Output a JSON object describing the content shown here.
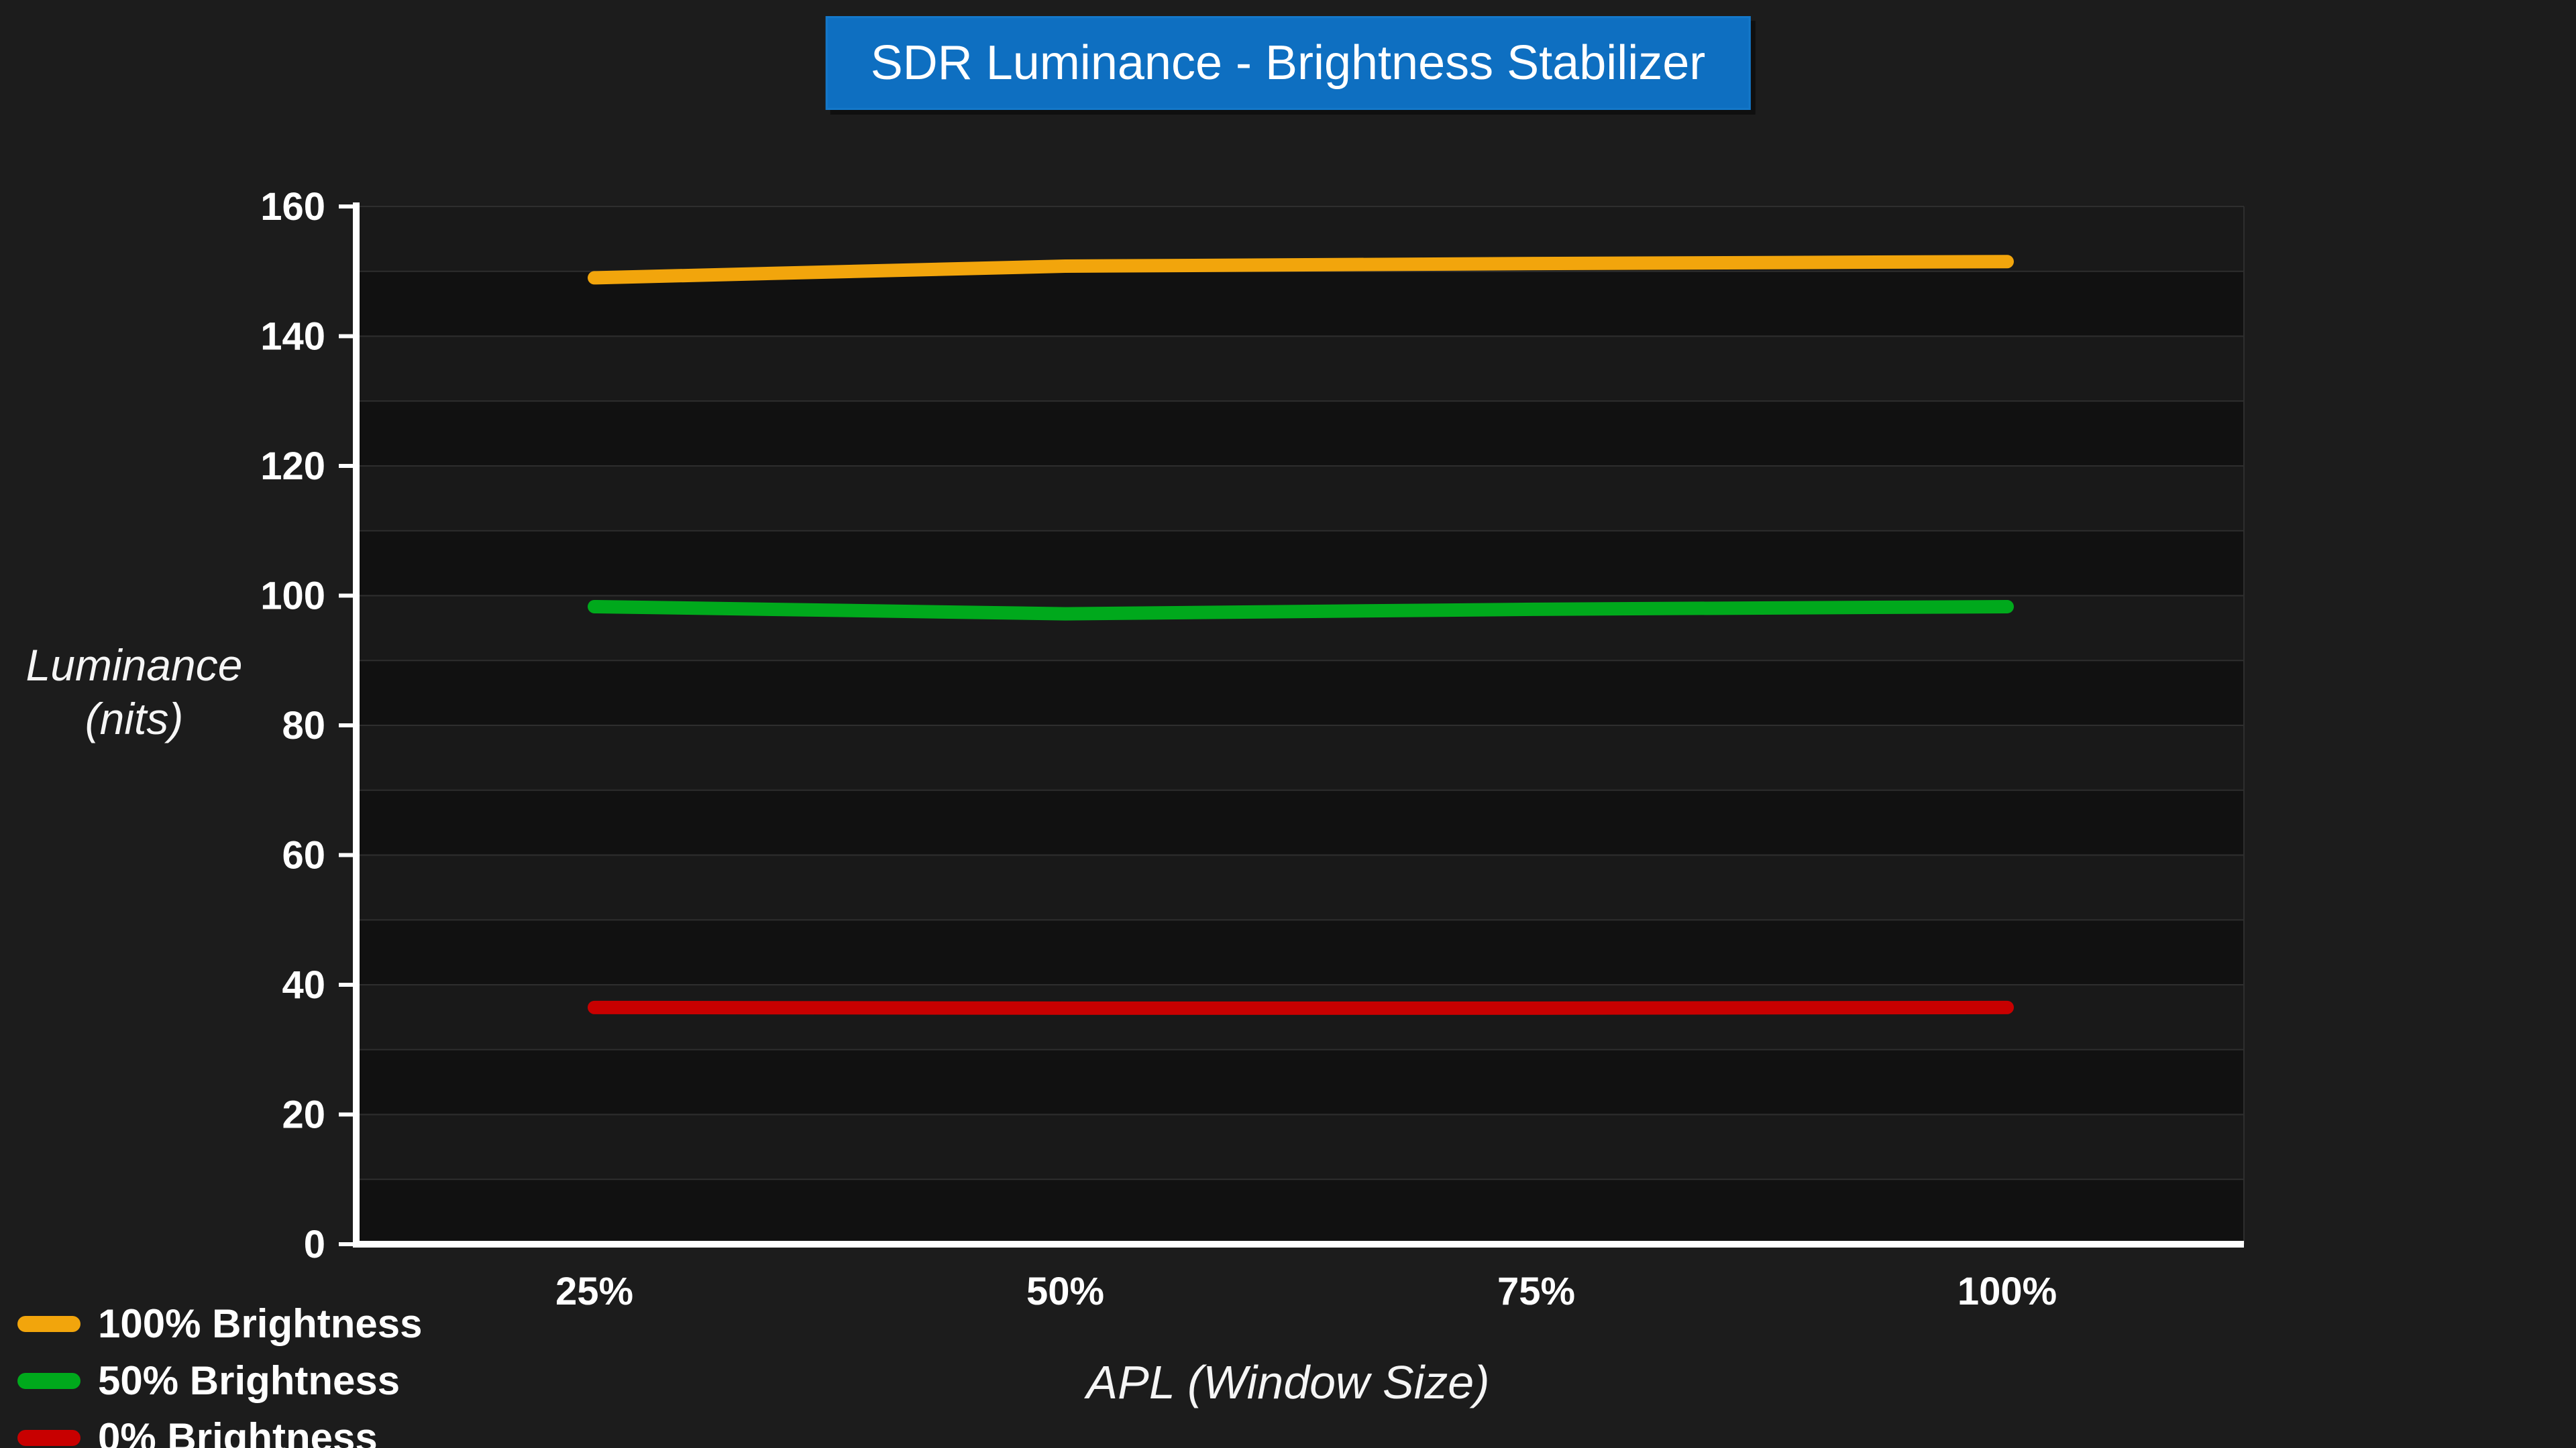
{
  "title": "SDR Luminance - Brightness Stabilizer",
  "colors": {
    "background": "#1c1c1c",
    "title_background": "#0e6fc1",
    "axis": "#ffffff",
    "gridline": "#2e2e2e",
    "text": "#ffffff"
  },
  "chart_data": {
    "type": "line",
    "title": "SDR Luminance - Brightness Stabilizer",
    "xlabel": "APL (Window Size)",
    "ylabel": "Luminance (nits)",
    "ylabel_lines": [
      "Luminance",
      "(nits)"
    ],
    "x_tick_labels": [
      "25%",
      "50%",
      "75%",
      "100%"
    ],
    "x": [
      25,
      50,
      75,
      100
    ],
    "y_ticks": [
      0,
      20,
      40,
      60,
      80,
      100,
      120,
      140,
      160
    ],
    "ylim": [
      0,
      160
    ],
    "grid": "horizontal gridlines every 10 nits, alternating shaded bands",
    "legend_position": "bottom-left",
    "series": [
      {
        "name": "100% Brightness",
        "color": "#f2a50c",
        "values": [
          149.0,
          150.8,
          151.2,
          151.5
        ]
      },
      {
        "name": "50% Brightness",
        "color": "#00a91c",
        "values": [
          98.3,
          97.2,
          97.9,
          98.3
        ]
      },
      {
        "name": "0% Brightness",
        "color": "#c80000",
        "values": [
          36.5,
          36.4,
          36.4,
          36.5
        ]
      }
    ]
  }
}
